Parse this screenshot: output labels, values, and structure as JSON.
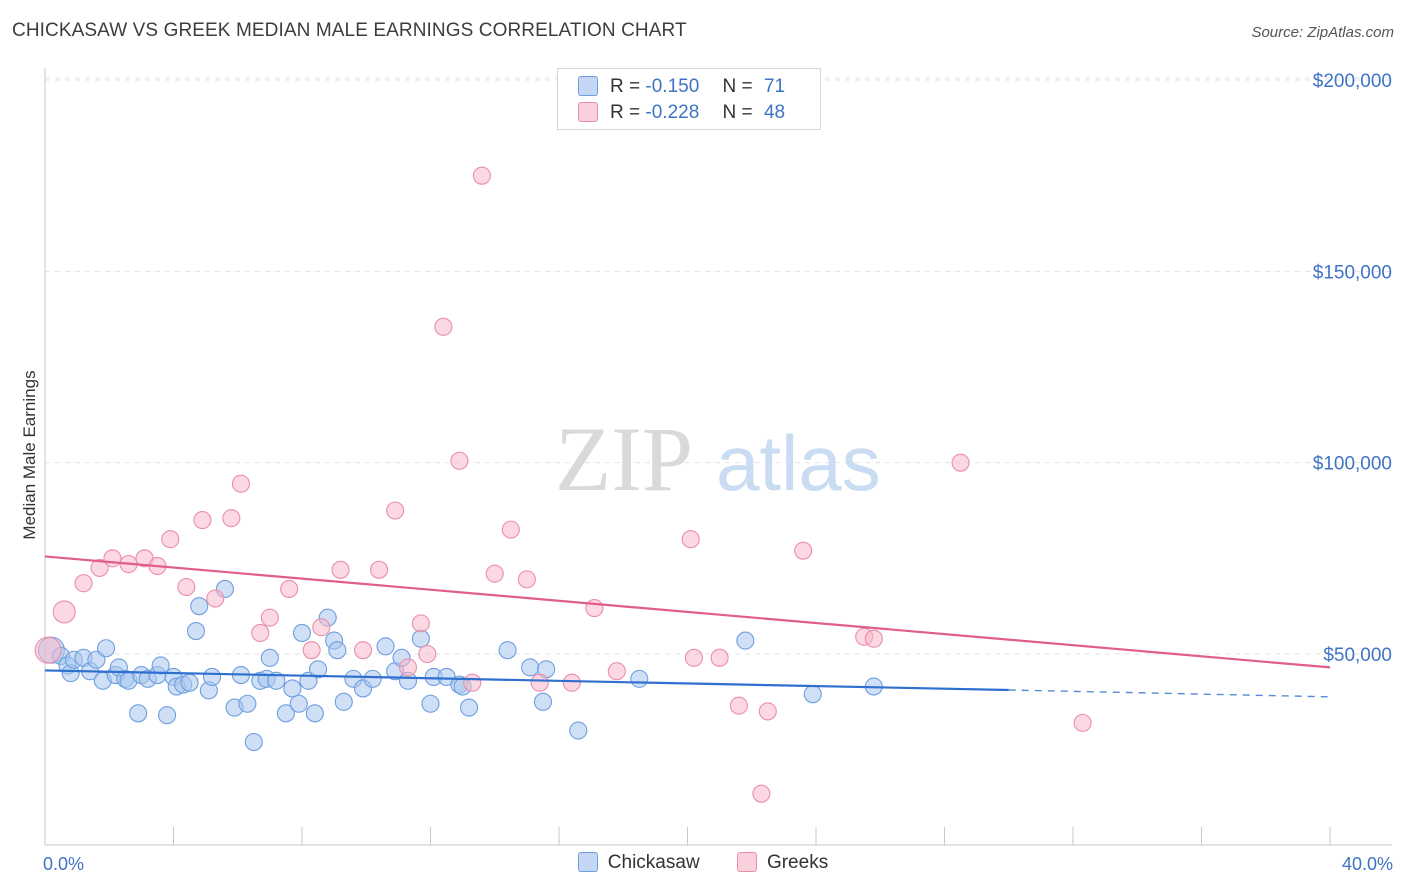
{
  "title": "CHICKASAW VS GREEK MEDIAN MALE EARNINGS CORRELATION CHART",
  "source": "Source: ZipAtlas.com",
  "watermark": {
    "zip": "ZIP",
    "atlas": "atlas"
  },
  "legend": {
    "items": [
      {
        "r_label": "R =",
        "r_value": "-0.150",
        "n_label": "N =",
        "n_value": "71",
        "color": "#a8c6ef",
        "stroke": "#6f9ee0"
      },
      {
        "r_label": "R =",
        "r_value": "-0.228",
        "n_label": "N =",
        "n_value": "48",
        "color": "#f7b8cb",
        "stroke": "#eb8eaa"
      }
    ]
  },
  "bottom_legend": [
    "Chickasaw",
    "Greeks"
  ],
  "chart_data": {
    "type": "scatter",
    "ylabel": "Median Male Earnings",
    "xlim": [
      0,
      40
    ],
    "ylim": [
      10000,
      210000
    ],
    "x_tick_labels": [
      "0.0%",
      "40.0%"
    ],
    "y_ticks": [
      {
        "value": 50000,
        "label": "$50,000"
      },
      {
        "value": 100000,
        "label": "$100,000"
      },
      {
        "value": 150000,
        "label": "$150,000"
      },
      {
        "value": 200000,
        "label": "$200,000"
      }
    ],
    "series": [
      {
        "name": "Chickasaw",
        "color": "#a8c6ef",
        "stroke": "#6f9ee0",
        "line_color": "#2f6fce",
        "trend": {
          "x0": 0,
          "y0": 45700,
          "x1": 30,
          "y1": 40600,
          "dash_to_x": 40,
          "dash_to_y": 38800
        },
        "points": [
          [
            0.2,
            51000
          ],
          [
            0.5,
            49500
          ],
          [
            0.7,
            47000
          ],
          [
            0.8,
            45000
          ],
          [
            0.9,
            48500
          ],
          [
            1.2,
            49000
          ],
          [
            1.4,
            45500
          ],
          [
            1.6,
            48500
          ],
          [
            1.8,
            43000
          ],
          [
            1.9,
            51500
          ],
          [
            2.2,
            44500
          ],
          [
            2.3,
            46500
          ],
          [
            2.5,
            43500
          ],
          [
            2.6,
            43000
          ],
          [
            2.9,
            34500
          ],
          [
            3.0,
            44500
          ],
          [
            3.2,
            43500
          ],
          [
            3.5,
            44500
          ],
          [
            3.6,
            47000
          ],
          [
            3.8,
            34000
          ],
          [
            4.0,
            44000
          ],
          [
            4.1,
            41500
          ],
          [
            4.3,
            42000
          ],
          [
            4.5,
            42500
          ],
          [
            4.7,
            56000
          ],
          [
            4.8,
            62500
          ],
          [
            5.1,
            40500
          ],
          [
            5.2,
            44000
          ],
          [
            5.6,
            67000
          ],
          [
            5.9,
            36000
          ],
          [
            6.1,
            44500
          ],
          [
            6.3,
            37000
          ],
          [
            6.5,
            27000
          ],
          [
            6.7,
            43000
          ],
          [
            6.9,
            43500
          ],
          [
            7.0,
            49000
          ],
          [
            7.2,
            43000
          ],
          [
            7.5,
            34500
          ],
          [
            7.7,
            41000
          ],
          [
            7.9,
            37000
          ],
          [
            8.0,
            55500
          ],
          [
            8.2,
            43000
          ],
          [
            8.4,
            34500
          ],
          [
            8.5,
            46000
          ],
          [
            8.8,
            59500
          ],
          [
            9.0,
            53500
          ],
          [
            9.1,
            51000
          ],
          [
            9.3,
            37500
          ],
          [
            9.6,
            43500
          ],
          [
            9.9,
            41000
          ],
          [
            10.2,
            43500
          ],
          [
            10.6,
            52000
          ],
          [
            10.9,
            45500
          ],
          [
            11.1,
            49000
          ],
          [
            11.3,
            43000
          ],
          [
            11.7,
            54000
          ],
          [
            12.0,
            37000
          ],
          [
            12.1,
            44000
          ],
          [
            12.5,
            44000
          ],
          [
            12.9,
            42000
          ],
          [
            13.0,
            41500
          ],
          [
            13.2,
            36000
          ],
          [
            14.4,
            51000
          ],
          [
            15.1,
            46500
          ],
          [
            15.5,
            37500
          ],
          [
            15.6,
            46000
          ],
          [
            16.6,
            30000
          ],
          [
            18.5,
            43500
          ],
          [
            21.8,
            53500
          ],
          [
            23.9,
            39500
          ],
          [
            25.8,
            41500
          ]
        ]
      },
      {
        "name": "Greeks",
        "color": "#f7b8cb",
        "stroke": "#eb8eaa",
        "line_color": "#e05d8c",
        "trend": {
          "x0": 0,
          "y0": 75500,
          "x1": 40,
          "y1": 46500
        },
        "points": [
          [
            0.1,
            51000
          ],
          [
            0.6,
            61000
          ],
          [
            1.2,
            68500
          ],
          [
            1.7,
            72500
          ],
          [
            2.1,
            75000
          ],
          [
            2.6,
            73500
          ],
          [
            3.1,
            75000
          ],
          [
            3.5,
            73000
          ],
          [
            3.9,
            80000
          ],
          [
            4.4,
            67500
          ],
          [
            4.9,
            85000
          ],
          [
            5.3,
            64500
          ],
          [
            5.8,
            85500
          ],
          [
            6.1,
            94500
          ],
          [
            6.7,
            55500
          ],
          [
            7.0,
            59500
          ],
          [
            7.6,
            67000
          ],
          [
            8.3,
            51000
          ],
          [
            8.6,
            57000
          ],
          [
            9.2,
            72000
          ],
          [
            9.9,
            51000
          ],
          [
            10.4,
            72000
          ],
          [
            10.9,
            87500
          ],
          [
            11.3,
            46500
          ],
          [
            11.7,
            58000
          ],
          [
            11.9,
            50000
          ],
          [
            12.4,
            135500
          ],
          [
            12.9,
            100500
          ],
          [
            13.3,
            42500
          ],
          [
            13.6,
            175000
          ],
          [
            14.0,
            71000
          ],
          [
            14.5,
            82500
          ],
          [
            15.0,
            69500
          ],
          [
            15.4,
            42500
          ],
          [
            16.4,
            42500
          ],
          [
            17.1,
            62000
          ],
          [
            17.8,
            45500
          ],
          [
            20.1,
            80000
          ],
          [
            20.2,
            49000
          ],
          [
            21.0,
            49000
          ],
          [
            21.6,
            36500
          ],
          [
            22.3,
            13500
          ],
          [
            22.5,
            35000
          ],
          [
            23.6,
            77000
          ],
          [
            25.5,
            54500
          ],
          [
            25.8,
            54000
          ],
          [
            28.5,
            100000
          ],
          [
            32.3,
            32000
          ]
        ]
      }
    ]
  }
}
